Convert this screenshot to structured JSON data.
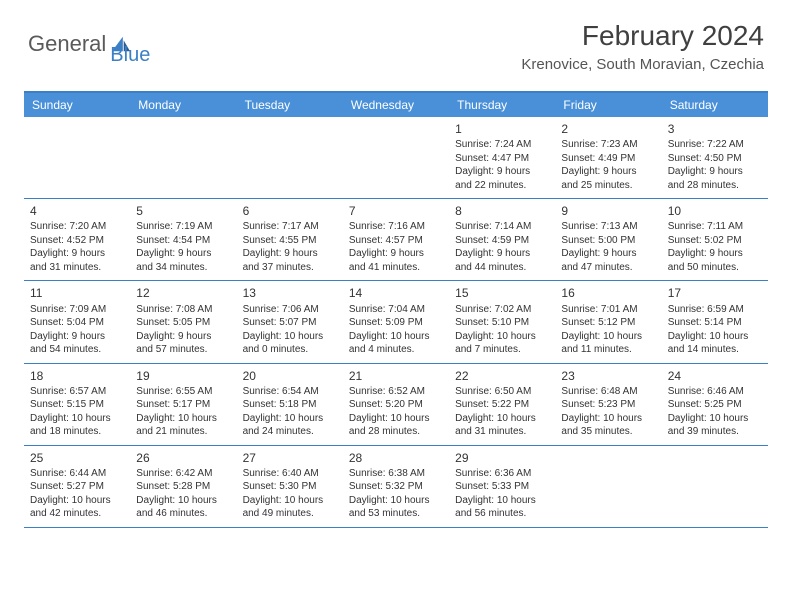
{
  "branding": {
    "part1": "General",
    "part2": "Blue"
  },
  "title": "February 2024",
  "location": "Krenovice, South Moravian, Czechia",
  "colors": {
    "header_bg": "#4a90d9",
    "header_text": "#ffffff",
    "accent": "#3b7fc4",
    "body_text": "#333333",
    "logo_gray": "#5a5a5a"
  },
  "day_headers": [
    "Sunday",
    "Monday",
    "Tuesday",
    "Wednesday",
    "Thursday",
    "Friday",
    "Saturday"
  ],
  "weeks": [
    [
      {
        "day": "",
        "sunrise": "",
        "sunset": "",
        "daylight1": "",
        "daylight2": ""
      },
      {
        "day": "",
        "sunrise": "",
        "sunset": "",
        "daylight1": "",
        "daylight2": ""
      },
      {
        "day": "",
        "sunrise": "",
        "sunset": "",
        "daylight1": "",
        "daylight2": ""
      },
      {
        "day": "",
        "sunrise": "",
        "sunset": "",
        "daylight1": "",
        "daylight2": ""
      },
      {
        "day": "1",
        "sunrise": "Sunrise: 7:24 AM",
        "sunset": "Sunset: 4:47 PM",
        "daylight1": "Daylight: 9 hours",
        "daylight2": "and 22 minutes."
      },
      {
        "day": "2",
        "sunrise": "Sunrise: 7:23 AM",
        "sunset": "Sunset: 4:49 PM",
        "daylight1": "Daylight: 9 hours",
        "daylight2": "and 25 minutes."
      },
      {
        "day": "3",
        "sunrise": "Sunrise: 7:22 AM",
        "sunset": "Sunset: 4:50 PM",
        "daylight1": "Daylight: 9 hours",
        "daylight2": "and 28 minutes."
      }
    ],
    [
      {
        "day": "4",
        "sunrise": "Sunrise: 7:20 AM",
        "sunset": "Sunset: 4:52 PM",
        "daylight1": "Daylight: 9 hours",
        "daylight2": "and 31 minutes."
      },
      {
        "day": "5",
        "sunrise": "Sunrise: 7:19 AM",
        "sunset": "Sunset: 4:54 PM",
        "daylight1": "Daylight: 9 hours",
        "daylight2": "and 34 minutes."
      },
      {
        "day": "6",
        "sunrise": "Sunrise: 7:17 AM",
        "sunset": "Sunset: 4:55 PM",
        "daylight1": "Daylight: 9 hours",
        "daylight2": "and 37 minutes."
      },
      {
        "day": "7",
        "sunrise": "Sunrise: 7:16 AM",
        "sunset": "Sunset: 4:57 PM",
        "daylight1": "Daylight: 9 hours",
        "daylight2": "and 41 minutes."
      },
      {
        "day": "8",
        "sunrise": "Sunrise: 7:14 AM",
        "sunset": "Sunset: 4:59 PM",
        "daylight1": "Daylight: 9 hours",
        "daylight2": "and 44 minutes."
      },
      {
        "day": "9",
        "sunrise": "Sunrise: 7:13 AM",
        "sunset": "Sunset: 5:00 PM",
        "daylight1": "Daylight: 9 hours",
        "daylight2": "and 47 minutes."
      },
      {
        "day": "10",
        "sunrise": "Sunrise: 7:11 AM",
        "sunset": "Sunset: 5:02 PM",
        "daylight1": "Daylight: 9 hours",
        "daylight2": "and 50 minutes."
      }
    ],
    [
      {
        "day": "11",
        "sunrise": "Sunrise: 7:09 AM",
        "sunset": "Sunset: 5:04 PM",
        "daylight1": "Daylight: 9 hours",
        "daylight2": "and 54 minutes."
      },
      {
        "day": "12",
        "sunrise": "Sunrise: 7:08 AM",
        "sunset": "Sunset: 5:05 PM",
        "daylight1": "Daylight: 9 hours",
        "daylight2": "and 57 minutes."
      },
      {
        "day": "13",
        "sunrise": "Sunrise: 7:06 AM",
        "sunset": "Sunset: 5:07 PM",
        "daylight1": "Daylight: 10 hours",
        "daylight2": "and 0 minutes."
      },
      {
        "day": "14",
        "sunrise": "Sunrise: 7:04 AM",
        "sunset": "Sunset: 5:09 PM",
        "daylight1": "Daylight: 10 hours",
        "daylight2": "and 4 minutes."
      },
      {
        "day": "15",
        "sunrise": "Sunrise: 7:02 AM",
        "sunset": "Sunset: 5:10 PM",
        "daylight1": "Daylight: 10 hours",
        "daylight2": "and 7 minutes."
      },
      {
        "day": "16",
        "sunrise": "Sunrise: 7:01 AM",
        "sunset": "Sunset: 5:12 PM",
        "daylight1": "Daylight: 10 hours",
        "daylight2": "and 11 minutes."
      },
      {
        "day": "17",
        "sunrise": "Sunrise: 6:59 AM",
        "sunset": "Sunset: 5:14 PM",
        "daylight1": "Daylight: 10 hours",
        "daylight2": "and 14 minutes."
      }
    ],
    [
      {
        "day": "18",
        "sunrise": "Sunrise: 6:57 AM",
        "sunset": "Sunset: 5:15 PM",
        "daylight1": "Daylight: 10 hours",
        "daylight2": "and 18 minutes."
      },
      {
        "day": "19",
        "sunrise": "Sunrise: 6:55 AM",
        "sunset": "Sunset: 5:17 PM",
        "daylight1": "Daylight: 10 hours",
        "daylight2": "and 21 minutes."
      },
      {
        "day": "20",
        "sunrise": "Sunrise: 6:54 AM",
        "sunset": "Sunset: 5:18 PM",
        "daylight1": "Daylight: 10 hours",
        "daylight2": "and 24 minutes."
      },
      {
        "day": "21",
        "sunrise": "Sunrise: 6:52 AM",
        "sunset": "Sunset: 5:20 PM",
        "daylight1": "Daylight: 10 hours",
        "daylight2": "and 28 minutes."
      },
      {
        "day": "22",
        "sunrise": "Sunrise: 6:50 AM",
        "sunset": "Sunset: 5:22 PM",
        "daylight1": "Daylight: 10 hours",
        "daylight2": "and 31 minutes."
      },
      {
        "day": "23",
        "sunrise": "Sunrise: 6:48 AM",
        "sunset": "Sunset: 5:23 PM",
        "daylight1": "Daylight: 10 hours",
        "daylight2": "and 35 minutes."
      },
      {
        "day": "24",
        "sunrise": "Sunrise: 6:46 AM",
        "sunset": "Sunset: 5:25 PM",
        "daylight1": "Daylight: 10 hours",
        "daylight2": "and 39 minutes."
      }
    ],
    [
      {
        "day": "25",
        "sunrise": "Sunrise: 6:44 AM",
        "sunset": "Sunset: 5:27 PM",
        "daylight1": "Daylight: 10 hours",
        "daylight2": "and 42 minutes."
      },
      {
        "day": "26",
        "sunrise": "Sunrise: 6:42 AM",
        "sunset": "Sunset: 5:28 PM",
        "daylight1": "Daylight: 10 hours",
        "daylight2": "and 46 minutes."
      },
      {
        "day": "27",
        "sunrise": "Sunrise: 6:40 AM",
        "sunset": "Sunset: 5:30 PM",
        "daylight1": "Daylight: 10 hours",
        "daylight2": "and 49 minutes."
      },
      {
        "day": "28",
        "sunrise": "Sunrise: 6:38 AM",
        "sunset": "Sunset: 5:32 PM",
        "daylight1": "Daylight: 10 hours",
        "daylight2": "and 53 minutes."
      },
      {
        "day": "29",
        "sunrise": "Sunrise: 6:36 AM",
        "sunset": "Sunset: 5:33 PM",
        "daylight1": "Daylight: 10 hours",
        "daylight2": "and 56 minutes."
      },
      {
        "day": "",
        "sunrise": "",
        "sunset": "",
        "daylight1": "",
        "daylight2": ""
      },
      {
        "day": "",
        "sunrise": "",
        "sunset": "",
        "daylight1": "",
        "daylight2": ""
      }
    ]
  ]
}
